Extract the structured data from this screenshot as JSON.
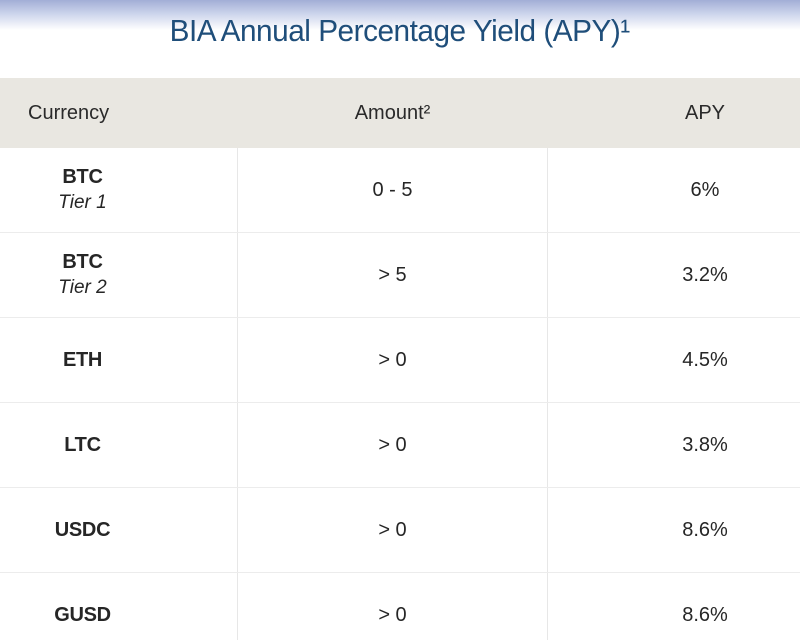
{
  "header": {
    "title": "BIA Annual Percentage Yield (APY)¹"
  },
  "table": {
    "columns": [
      "Currency",
      "Amount²",
      "APY"
    ],
    "rows": [
      {
        "currency": "BTC",
        "tier": "Tier 1",
        "amount": "0 - 5",
        "apy": "6%"
      },
      {
        "currency": "BTC",
        "tier": "Tier 2",
        "amount": "> 5",
        "apy": "3.2%"
      },
      {
        "currency": "ETH",
        "amount": "> 0",
        "apy": "4.5%"
      },
      {
        "currency": "LTC",
        "amount": "> 0",
        "apy": "3.8%"
      },
      {
        "currency": "USDC",
        "amount": "> 0",
        "apy": "8.6%"
      },
      {
        "currency": "GUSD",
        "amount": "> 0",
        "apy": "8.6%"
      }
    ]
  },
  "colors": {
    "title_text": "#1f4e7a",
    "banner_gradient_top": "#a2aed6",
    "header_bg": "#e9e7e1",
    "row_divider": "#ececec",
    "column_divider": "#e7e7e7",
    "body_text": "#262626"
  }
}
